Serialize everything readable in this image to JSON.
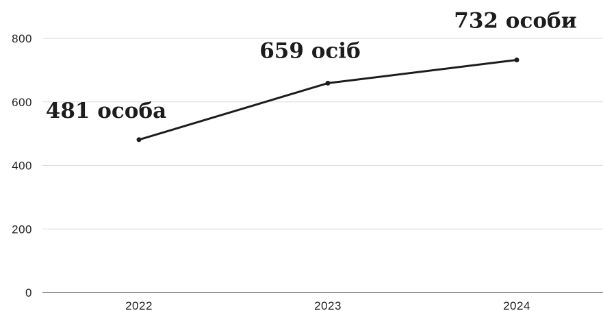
{
  "chart_data": {
    "type": "line",
    "categories": [
      "2022",
      "2023",
      "2024"
    ],
    "values": [
      481,
      659,
      732
    ],
    "data_labels": [
      "481 особа",
      "659 осіб",
      "732 особи"
    ],
    "y_ticks": [
      "0",
      "200",
      "400",
      "600",
      "800"
    ],
    "ylim": [
      0,
      800
    ],
    "grid": true,
    "colors": {
      "line": "#1c1c1c",
      "grid": "#d9d9d9"
    }
  }
}
